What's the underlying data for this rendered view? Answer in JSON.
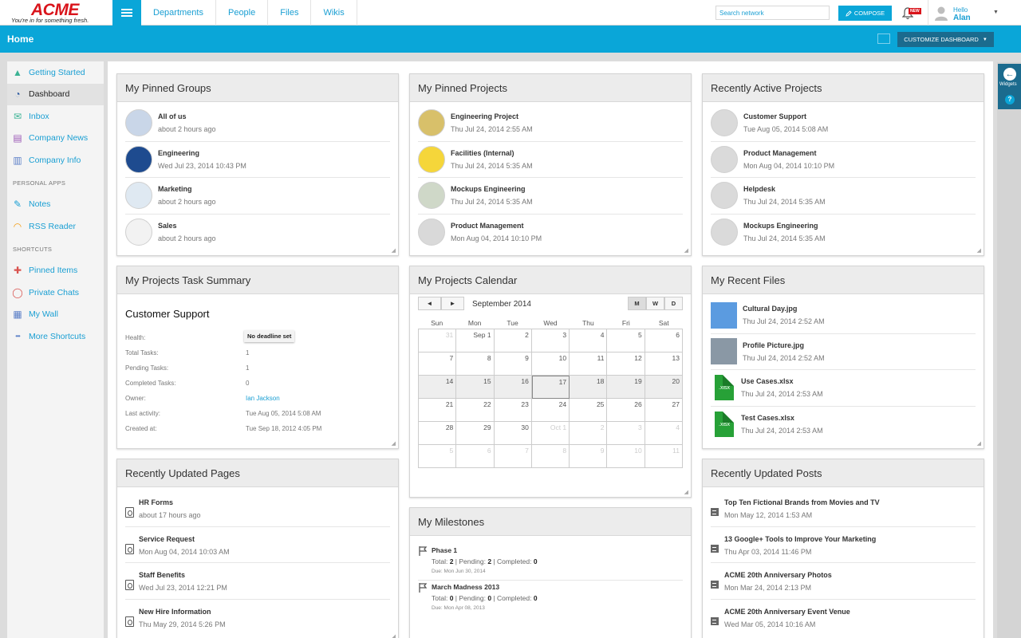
{
  "brand": {
    "name": "ACME",
    "tagline": "You're in for something fresh."
  },
  "nav": [
    "Departments",
    "People",
    "Files",
    "Wikis"
  ],
  "search": {
    "placeholder": "Search network"
  },
  "compose": "COMPOSE",
  "notifications": {
    "badge": "NEW"
  },
  "user": {
    "greeting": "Hello",
    "name": "Alan"
  },
  "header": {
    "title": "Home",
    "customize": "CUSTOMIZE DASHBOARD"
  },
  "sidebar": {
    "main": [
      {
        "label": "Getting Started",
        "icon": "rocket-icon",
        "color": "#3bb394"
      },
      {
        "label": "Dashboard",
        "icon": "gauge-icon",
        "color": "#2c5aa0"
      },
      {
        "label": "Inbox",
        "icon": "envelope-icon",
        "color": "#3bb394"
      },
      {
        "label": "Company News",
        "icon": "newspaper-icon",
        "color": "#9b59b6"
      },
      {
        "label": "Company Info",
        "icon": "building-icon",
        "color": "#5b7fc7"
      }
    ],
    "personal_heading": "PERSONAL APPS",
    "personal": [
      {
        "label": "Notes",
        "icon": "note-icon",
        "color": "#1a9fd3"
      },
      {
        "label": "RSS Reader",
        "icon": "rss-icon",
        "color": "#f39c12"
      }
    ],
    "shortcuts_heading": "SHORTCUTS",
    "shortcuts": [
      {
        "label": "Pinned Items",
        "icon": "pin-icon",
        "color": "#d9534f"
      },
      {
        "label": "Private Chats",
        "icon": "chat-icon",
        "color": "#d9534f"
      },
      {
        "label": "My Wall",
        "icon": "wall-icon",
        "color": "#5b7fc7"
      },
      {
        "label": "More Shortcuts",
        "icon": "more-icon",
        "color": "#5b7fc7"
      }
    ]
  },
  "widgets": {
    "label": "Widgets",
    "help": "?"
  },
  "pinned_groups": {
    "title": "My Pinned Groups",
    "items": [
      {
        "name": "All of us",
        "time": "about 2 hours ago"
      },
      {
        "name": "Engineering",
        "time": "Wed Jul 23, 2014 10:43 PM"
      },
      {
        "name": "Marketing",
        "time": "about 2 hours ago"
      },
      {
        "name": "Sales",
        "time": "about 2 hours ago"
      }
    ]
  },
  "pinned_projects": {
    "title": "My Pinned Projects",
    "items": [
      {
        "name": "Engineering Project",
        "time": "Thu Jul 24, 2014 2:55 AM"
      },
      {
        "name": "Facilities (Internal)",
        "time": "Thu Jul 24, 2014 5:35 AM"
      },
      {
        "name": "Mockups Engineering",
        "time": "Thu Jul 24, 2014 5:35 AM"
      },
      {
        "name": "Product Management",
        "time": "Mon Aug 04, 2014 10:10 PM"
      }
    ]
  },
  "active_projects": {
    "title": "Recently Active Projects",
    "items": [
      {
        "name": "Customer Support",
        "time": "Tue Aug 05, 2014 5:08 AM"
      },
      {
        "name": "Product Management",
        "time": "Mon Aug 04, 2014 10:10 PM"
      },
      {
        "name": "Helpdesk",
        "time": "Thu Jul 24, 2014 5:35 AM"
      },
      {
        "name": "Mockups Engineering",
        "time": "Thu Jul 24, 2014 5:35 AM"
      }
    ]
  },
  "task_summary": {
    "title": "My Projects Task Summary",
    "project": "Customer Support",
    "rows": [
      {
        "label": "Health:",
        "value": "No deadline set"
      },
      {
        "label": "Total Tasks:",
        "value": "1"
      },
      {
        "label": "Pending Tasks:",
        "value": "1"
      },
      {
        "label": "Completed Tasks:",
        "value": "0"
      },
      {
        "label": "Owner:",
        "value": "Ian Jackson"
      },
      {
        "label": "Last activity:",
        "value": "Tue Aug 05, 2014 5:08 AM"
      },
      {
        "label": "Created at:",
        "value": "Tue Sep 18, 2012 4:05 PM"
      }
    ]
  },
  "calendar": {
    "title": "My Projects Calendar",
    "month": "September 2014",
    "prev": "◄",
    "next": "►",
    "views": [
      "M",
      "W",
      "D"
    ],
    "weekdays": [
      "Sun",
      "Mon",
      "Tue",
      "Wed",
      "Thu",
      "Fri",
      "Sat"
    ],
    "days": [
      "31",
      "Sep 1",
      "2",
      "3",
      "4",
      "5",
      "6",
      "7",
      "8",
      "9",
      "10",
      "11",
      "12",
      "13",
      "14",
      "15",
      "16",
      "17",
      "18",
      "19",
      "20",
      "21",
      "22",
      "23",
      "24",
      "25",
      "26",
      "27",
      "28",
      "29",
      "30",
      "Oct 1",
      "2",
      "3",
      "4",
      "5",
      "6",
      "7",
      "8",
      "9",
      "10",
      "11"
    ],
    "today": "17"
  },
  "recent_files": {
    "title": "My Recent Files",
    "items": [
      {
        "name": "Cultural Day.jpg",
        "time": "Thu Jul 24, 2014 2:52 AM",
        "kind": "image",
        "color": "#5b9be0"
      },
      {
        "name": "Profile Picture.jpg",
        "time": "Thu Jul 24, 2014 2:52 AM",
        "kind": "image",
        "color": "#8a98a5"
      },
      {
        "name": "Use Cases.xlsx",
        "time": "Thu Jul 24, 2014 2:53 AM",
        "kind": "xlsx",
        "ext": ".xlsx"
      },
      {
        "name": "Test Cases.xlsx",
        "time": "Thu Jul 24, 2014 2:53 AM",
        "kind": "xlsx",
        "ext": ".xlsx"
      }
    ]
  },
  "recent_pages": {
    "title": "Recently Updated Pages",
    "items": [
      {
        "name": "HR Forms",
        "time": "about 17 hours ago"
      },
      {
        "name": "Service Request",
        "time": "Mon Aug 04, 2014 10:03 AM"
      },
      {
        "name": "Staff Benefits",
        "time": "Wed Jul 23, 2014 12:21 PM"
      },
      {
        "name": "New Hire Information",
        "time": "Thu May 29, 2014 5:26 PM"
      }
    ]
  },
  "milestones": {
    "title": "My Milestones",
    "total_label": "Total:",
    "pending_label": "Pending:",
    "completed_label": "Completed:",
    "items": [
      {
        "name": "Phase 1",
        "total": "2",
        "pending": "2",
        "completed": "0",
        "due": "Due: Mon Jun 30, 2014"
      },
      {
        "name": "March Madness 2013",
        "total": "0",
        "pending": "0",
        "completed": "0",
        "due": "Due: Mon Apr 08, 2013"
      }
    ]
  },
  "recent_posts": {
    "title": "Recently Updated Posts",
    "items": [
      {
        "name": "Top Ten Fictional Brands from Movies and TV",
        "time": "Mon May 12, 2014 1:53 AM"
      },
      {
        "name": "13 Google+ Tools to Improve Your Marketing",
        "time": "Thu Apr 03, 2014 11:46 PM"
      },
      {
        "name": "ACME 20th Anniversary Photos",
        "time": "Mon Mar 24, 2014 2:13 PM"
      },
      {
        "name": "ACME 20th Anniversary Event Venue",
        "time": "Wed Mar 05, 2014 10:16 AM"
      }
    ]
  }
}
